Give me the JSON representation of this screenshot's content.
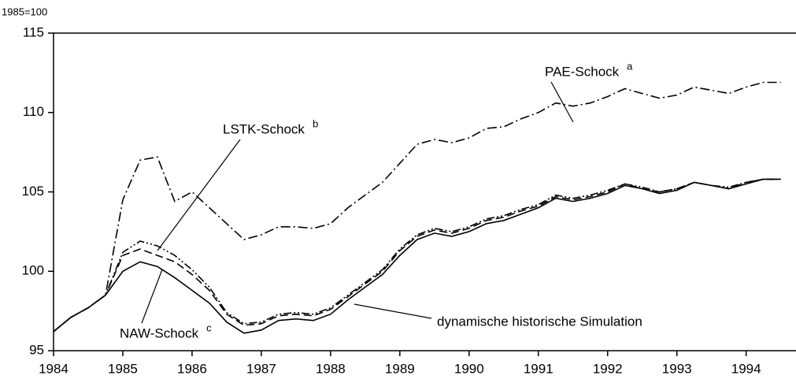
{
  "chart_data": {
    "type": "line",
    "y_label": "1985=100",
    "x": [
      1984,
      1984.25,
      1984.5,
      1984.75,
      1985,
      1985.25,
      1985.5,
      1985.75,
      1986,
      1986.25,
      1986.5,
      1986.75,
      1987,
      1987.25,
      1987.5,
      1987.75,
      1988,
      1988.25,
      1988.5,
      1988.75,
      1989,
      1989.25,
      1989.5,
      1989.75,
      1990,
      1990.25,
      1990.5,
      1990.75,
      1991,
      1991.25,
      1991.5,
      1991.75,
      1992,
      1992.25,
      1992.5,
      1992.75,
      1993,
      1993.25,
      1993.5,
      1993.75,
      1994,
      1994.25,
      1994.5
    ],
    "series": [
      {
        "name": "dynamische historische Simulation",
        "color": "#000000",
        "dash": "solid",
        "values": [
          96.2,
          97.1,
          97.7,
          98.5,
          100.0,
          100.6,
          100.3,
          99.6,
          98.8,
          98.0,
          96.8,
          96.1,
          96.3,
          96.9,
          97.0,
          96.9,
          97.3,
          98.2,
          99.0,
          99.8,
          101.0,
          102.0,
          102.4,
          102.2,
          102.5,
          103.0,
          103.2,
          103.6,
          104.0,
          104.6,
          104.4,
          104.6,
          104.9,
          105.4,
          105.2,
          104.9,
          105.1,
          105.6,
          105.4,
          105.2,
          105.5,
          105.8,
          105.8
        ]
      },
      {
        "name": "NAW-Schock",
        "marker": "c",
        "color": "#000000",
        "dash": "dashed",
        "values": [
          96.2,
          97.1,
          97.7,
          98.5,
          101.0,
          101.4,
          101.0,
          100.6,
          99.8,
          98.8,
          97.3,
          96.6,
          96.7,
          97.2,
          97.3,
          97.2,
          97.6,
          98.4,
          99.2,
          100.0,
          101.3,
          102.2,
          102.6,
          102.4,
          102.7,
          103.2,
          103.4,
          103.8,
          104.1,
          104.7,
          104.5,
          104.7,
          105.0,
          105.5,
          105.2,
          105.0,
          105.2,
          105.6,
          105.4,
          105.2,
          105.6,
          105.8,
          105.8
        ]
      },
      {
        "name": "LSTK-Schock",
        "marker": "b",
        "color": "#000000",
        "dash": "dashdotdot",
        "values": [
          96.2,
          97.1,
          97.7,
          98.5,
          101.2,
          101.9,
          101.6,
          101.0,
          100.1,
          99.0,
          97.4,
          96.7,
          96.8,
          97.3,
          97.4,
          97.3,
          97.7,
          98.5,
          99.3,
          100.1,
          101.4,
          102.3,
          102.7,
          102.5,
          102.8,
          103.3,
          103.5,
          103.9,
          104.2,
          104.8,
          104.6,
          104.8,
          105.1,
          105.5,
          105.3,
          105.0,
          105.2,
          105.6,
          105.4,
          105.3,
          105.6,
          105.8,
          105.8
        ]
      },
      {
        "name": "PAE-Schock",
        "marker": "a",
        "color": "#000000",
        "dash": "dashdot",
        "values": [
          96.2,
          97.1,
          97.7,
          98.5,
          104.5,
          107.0,
          107.2,
          104.4,
          105.0,
          104.0,
          103.0,
          102.0,
          102.3,
          102.8,
          102.8,
          102.7,
          103.0,
          104.0,
          104.8,
          105.6,
          106.8,
          108.0,
          108.3,
          108.1,
          108.4,
          109.0,
          109.1,
          109.6,
          110.0,
          110.6,
          110.4,
          110.6,
          111.0,
          111.5,
          111.2,
          110.9,
          111.1,
          111.6,
          111.4,
          111.2,
          111.6,
          111.9,
          111.9
        ]
      }
    ],
    "xlim": [
      1984,
      1994.72
    ],
    "xticks": [
      1984,
      1985,
      1986,
      1987,
      1988,
      1989,
      1990,
      1991,
      1992,
      1993,
      1994
    ],
    "ylim": [
      95,
      115
    ],
    "yticks": [
      95,
      100,
      105,
      110,
      115
    ],
    "grid": false
  }
}
